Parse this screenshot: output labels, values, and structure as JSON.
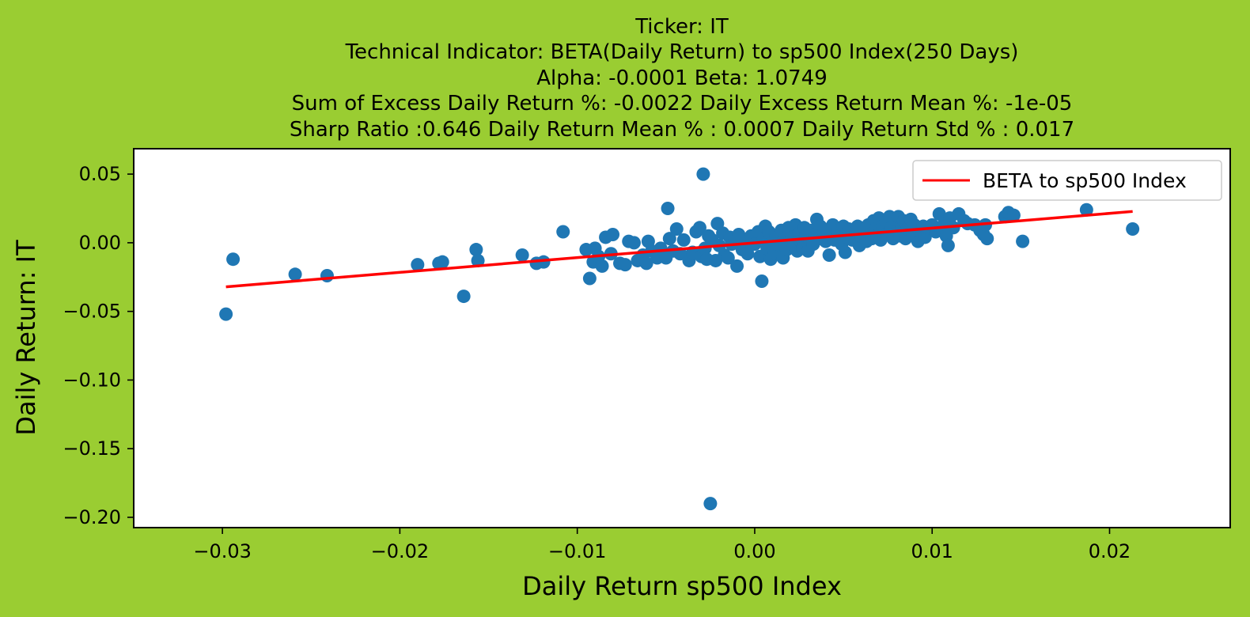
{
  "chart_data": {
    "type": "scatter",
    "title_lines": [
      "Ticker: IT",
      "Technical Indicator: BETA(Daily Return) to sp500 Index(250 Days)",
      "Alpha: -0.0001   Beta: 1.0749",
      "Sum of Excess Daily Return %: -0.0022   Daily Excess Return Mean %: -1e-05",
      "Sharp Ratio :0.646     Daily Return Mean % : 0.0007     Daily Return Std % : 0.017"
    ],
    "xlabel": "Daily Return sp500 Index",
    "ylabel": "Daily Return: IT",
    "xlim": [
      -0.035,
      0.0268
    ],
    "ylim": [
      -0.2075,
      0.0685
    ],
    "xticks": [
      -0.03,
      -0.02,
      -0.01,
      0.0,
      0.01,
      0.02
    ],
    "xtick_labels": [
      "−0.03",
      "−0.02",
      "−0.01",
      "0.00",
      "0.01",
      "0.02"
    ],
    "yticks": [
      0.05,
      0.0,
      -0.05,
      -0.1,
      -0.15,
      -0.2
    ],
    "ytick_labels": [
      "0.05",
      "0.00",
      "−0.05",
      "−0.10",
      "−0.15",
      "−0.20"
    ],
    "grid": false,
    "legend_position": "top-right",
    "colors": {
      "background": "#9acd32",
      "points": "#1f77b4",
      "line": "#ff0000"
    },
    "series": [
      {
        "kind": "scatter",
        "points": [
          [
            -0.0298,
            -0.052
          ],
          [
            -0.0294,
            -0.012
          ],
          [
            -0.0259,
            -0.023
          ],
          [
            -0.0241,
            -0.024
          ],
          [
            -0.019,
            -0.016
          ],
          [
            -0.0178,
            -0.015
          ],
          [
            -0.0176,
            -0.014
          ],
          [
            -0.0164,
            -0.039
          ],
          [
            -0.0157,
            -0.005
          ],
          [
            -0.0156,
            -0.013
          ],
          [
            -0.0131,
            -0.009
          ],
          [
            -0.0123,
            -0.015
          ],
          [
            -0.0119,
            -0.014
          ],
          [
            -0.0108,
            0.008
          ],
          [
            -0.0095,
            -0.005
          ],
          [
            -0.0093,
            -0.026
          ],
          [
            -0.0091,
            -0.014
          ],
          [
            -0.009,
            -0.004
          ],
          [
            -0.0088,
            -0.01
          ],
          [
            -0.0086,
            -0.017
          ],
          [
            -0.0084,
            0.004
          ],
          [
            -0.0081,
            -0.008
          ],
          [
            -0.008,
            0.006
          ],
          [
            -0.0076,
            -0.015
          ],
          [
            -0.0073,
            -0.016
          ],
          [
            -0.0071,
            0.001
          ],
          [
            -0.0068,
            0.0
          ],
          [
            -0.0066,
            -0.013
          ],
          [
            -0.0063,
            -0.009
          ],
          [
            -0.0061,
            -0.015
          ],
          [
            -0.006,
            0.001
          ],
          [
            -0.0058,
            -0.006
          ],
          [
            -0.0055,
            -0.011
          ],
          [
            -0.0053,
            -0.004
          ],
          [
            -0.005,
            -0.011
          ],
          [
            -0.0049,
            0.025
          ],
          [
            -0.0048,
            0.003
          ],
          [
            -0.0046,
            -0.006
          ],
          [
            -0.0044,
            0.01
          ],
          [
            -0.0042,
            -0.008
          ],
          [
            -0.004,
            0.002
          ],
          [
            -0.0037,
            -0.013
          ],
          [
            -0.0035,
            -0.007
          ],
          [
            -0.0033,
            0.008
          ],
          [
            -0.0031,
            0.011
          ],
          [
            -0.003,
            -0.01
          ],
          [
            -0.0029,
            0.05
          ],
          [
            -0.0028,
            -0.004
          ],
          [
            -0.0027,
            -0.012
          ],
          [
            -0.0026,
            0.005
          ],
          [
            -0.0025,
            -0.19
          ],
          [
            -0.0024,
            0.002
          ],
          [
            -0.0022,
            -0.013
          ],
          [
            -0.0021,
            0.014
          ],
          [
            -0.002,
            -0.002
          ],
          [
            -0.0018,
            0.007
          ],
          [
            -0.0017,
            -0.009
          ],
          [
            -0.0015,
            -0.011
          ],
          [
            -0.0014,
            0.004
          ],
          [
            -0.0013,
            -0.001
          ],
          [
            -0.0011,
            0.002
          ],
          [
            -0.001,
            -0.017
          ],
          [
            -0.0009,
            0.006
          ],
          [
            -0.0007,
            -0.005
          ],
          [
            -0.0005,
            0.001
          ],
          [
            -0.0004,
            -0.008
          ],
          [
            -0.0002,
            0.005
          ],
          [
            0.0,
            -0.001
          ],
          [
            0.0002,
            0.008
          ],
          [
            0.0003,
            -0.01
          ],
          [
            0.0004,
            -0.028
          ],
          [
            0.0005,
            0.003
          ],
          [
            0.0006,
            0.012
          ],
          [
            0.0007,
            -0.004
          ],
          [
            0.0008,
            0.008
          ],
          [
            0.0009,
            -0.012
          ],
          [
            0.001,
            0.002
          ],
          [
            0.0011,
            -0.007
          ],
          [
            0.0012,
            0.005
          ],
          [
            0.0013,
            -0.001
          ],
          [
            0.0015,
            0.009
          ],
          [
            0.0016,
            -0.011
          ],
          [
            0.0017,
            0.003
          ],
          [
            0.0018,
            -0.005
          ],
          [
            0.0019,
            0.011
          ],
          [
            0.0021,
            0.004
          ],
          [
            0.0022,
            -0.002
          ],
          [
            0.0023,
            0.013
          ],
          [
            0.0024,
            -0.006
          ],
          [
            0.0025,
            0.007
          ],
          [
            0.0026,
            0.001
          ],
          [
            0.0027,
            -0.004
          ],
          [
            0.0028,
            0.011
          ],
          [
            0.0029,
            0.005
          ],
          [
            0.003,
            -0.006
          ],
          [
            0.0031,
            0.002
          ],
          [
            0.0032,
            0.009
          ],
          [
            0.0033,
            -0.001
          ],
          [
            0.0034,
            0.006
          ],
          [
            0.0035,
            0.017
          ],
          [
            0.0036,
            0.003
          ],
          [
            0.0037,
            0.012
          ],
          [
            0.0039,
            0.008
          ],
          [
            0.004,
            0.001
          ],
          [
            0.0042,
            -0.009
          ],
          [
            0.0043,
            0.006
          ],
          [
            0.0044,
            0.013
          ],
          [
            0.0045,
            0.002
          ],
          [
            0.0047,
            0.009
          ],
          [
            0.0048,
            0.005
          ],
          [
            0.0049,
            -0.001
          ],
          [
            0.005,
            0.012
          ],
          [
            0.0051,
            -0.007
          ],
          [
            0.0052,
            0.004
          ],
          [
            0.0053,
            0.01
          ],
          [
            0.0055,
            0.002
          ],
          [
            0.0057,
            0.007
          ],
          [
            0.0058,
            0.012
          ],
          [
            0.0059,
            -0.002
          ],
          [
            0.006,
            0.005
          ],
          [
            0.0062,
            0.009
          ],
          [
            0.0063,
            0.001
          ],
          [
            0.0064,
            0.013
          ],
          [
            0.0065,
            0.006
          ],
          [
            0.0066,
            0.003
          ],
          [
            0.0067,
            0.016
          ],
          [
            0.0068,
            0.01
          ],
          [
            0.0069,
            0.005
          ],
          [
            0.007,
            0.018
          ],
          [
            0.0071,
            0.002
          ],
          [
            0.0072,
            0.012
          ],
          [
            0.0073,
            0.008
          ],
          [
            0.0074,
            0.015
          ],
          [
            0.0075,
            0.006
          ],
          [
            0.0076,
            0.019
          ],
          [
            0.0077,
            0.011
          ],
          [
            0.0078,
            0.003
          ],
          [
            0.0079,
            0.014
          ],
          [
            0.008,
            0.008
          ],
          [
            0.0081,
            0.019
          ],
          [
            0.0082,
            0.005
          ],
          [
            0.0083,
            0.012
          ],
          [
            0.0084,
            0.016
          ],
          [
            0.0085,
            0.003
          ],
          [
            0.0086,
            0.01
          ],
          [
            0.0088,
            0.017
          ],
          [
            0.0089,
            0.007
          ],
          [
            0.009,
            0.013
          ],
          [
            0.0092,
            0.001
          ],
          [
            0.0093,
            0.009
          ],
          [
            0.0095,
            0.012
          ],
          [
            0.0096,
            0.004
          ],
          [
            0.0098,
            0.011
          ],
          [
            0.01,
            0.013
          ],
          [
            0.0102,
            0.008
          ],
          [
            0.0104,
            0.021
          ],
          [
            0.0105,
            0.01
          ],
          [
            0.0107,
            0.015
          ],
          [
            0.0108,
            0.005
          ],
          [
            0.0109,
            -0.002
          ],
          [
            0.011,
            0.018
          ],
          [
            0.0112,
            0.011
          ],
          [
            0.0115,
            0.021
          ],
          [
            0.0118,
            0.016
          ],
          [
            0.012,
            0.014
          ],
          [
            0.0124,
            0.013
          ],
          [
            0.0127,
            0.009
          ],
          [
            0.0129,
            0.006
          ],
          [
            0.013,
            0.013
          ],
          [
            0.0131,
            0.003
          ],
          [
            0.0141,
            0.019
          ],
          [
            0.0143,
            0.022
          ],
          [
            0.0146,
            0.02
          ],
          [
            0.0151,
            0.001
          ],
          [
            0.0187,
            0.024
          ],
          [
            0.0213,
            0.01
          ]
        ]
      },
      {
        "kind": "line",
        "name": "BETA to sp500 Index",
        "x": [
          -0.0298,
          0.0213
        ],
        "y": [
          -0.0321,
          0.0228
        ]
      }
    ]
  }
}
